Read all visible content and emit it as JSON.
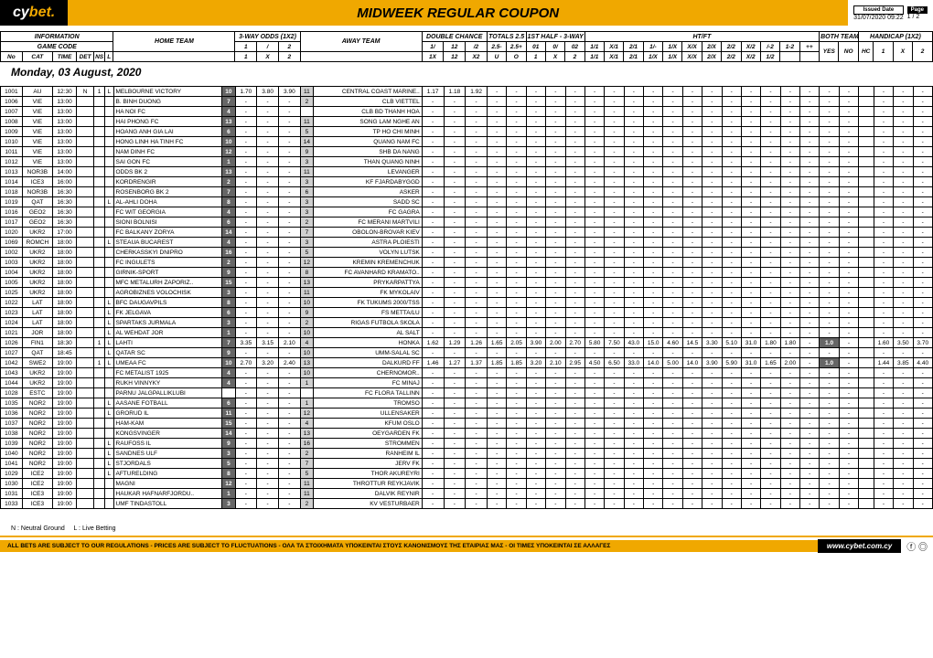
{
  "brand": {
    "pre": "cy",
    "mid": "bet",
    "dot": "."
  },
  "title": "MIDWEEK REGULAR COUPON",
  "issued_label": "Issued Date",
  "issued": "31/07/2020 09:22",
  "page_label": "Page",
  "page": "1 / 2",
  "date_header": "Monday, 03 August, 2020",
  "legend": "N : Neutral Ground     L : Live Betting",
  "disclaimer": "ALL BETS ARE SUBJECT TO OUR REGULATIONS - PRICES ARE SUBJECT TO FLUCTUATIONS - ΟΛΑ ΤΑ ΣΤΟΙΧΗΜΑΤΑ ΥΠΟΚΕΙΝΤΑΙ ΣΤΟΥΣ ΚΑΝΟΝΙΣΜΟΥΣ ΤΗΣ ΕΤΑΙΡΙΑΣ ΜΑΣ - ΟΙ ΤΙΜΕΣ ΥΠΟΚΕΙΝΤΑΙ ΣΕ ΑΛΛΑΓΕΣ",
  "site": "www.cybet.com.cy",
  "groups": {
    "info": "INFORMATION",
    "gamecode": "GAME CODE",
    "home": "HOME TEAM",
    "away": "AWAY TEAM",
    "threeway": "3-WAY ODDS (1X2)",
    "dc": "DOUBLE CHANCE",
    "tot": "TOTALS 2.5",
    "h13": "1ST HALF - 3-WAY",
    "htft": "HT/FT",
    "bts": "BOTH TEAMS TO SCORE",
    "hcap": "HANDICAP (1X2)"
  },
  "sub": {
    "no": "No",
    "cat": "CAT",
    "time": "TIME",
    "det": "DET",
    "ns": "NS",
    "l": "L",
    "o1": "1",
    "ox": "X",
    "o2": "2",
    "dc1": "1X",
    "dc12": "12",
    "dcx2": "X2",
    "u": "U",
    "o": "O",
    "h1": "1",
    "hx": "X",
    "h2": "2",
    "ht": [
      "1/1",
      "X/1",
      "2/1",
      "1/-",
      "1/X",
      "X/X",
      "2/X",
      "2/2",
      "X/2",
      "/-2",
      "1-2",
      "++"
    ],
    "yes": "YES",
    "no2": "NO",
    "hc": "HC",
    "hco": [
      "1",
      "X",
      "2"
    ],
    "tot25m": "2.5-",
    "tot25p": "2.5+",
    "h01": "01",
    "h0x": "0/",
    "h02": "02"
  },
  "rows": [
    {
      "no": "1001",
      "cat": "AU",
      "time": "12:30",
      "det": "N",
      "ns": "1",
      "l": "L",
      "home": "MELBOURNE VICTORY",
      "hp": "10",
      "o1": "1.70",
      "ox": "3.80",
      "o2": "3.90",
      "ap": "11",
      "away": "CENTRAL COAST MARINE..",
      "dc": [
        "1.17",
        "1.18",
        "1.92"
      ],
      "rest": "-"
    },
    {
      "no": "1006",
      "cat": "VIE",
      "time": "13:00",
      "home": "B. BINH DUONG",
      "hp": "7",
      "ap": "2",
      "away": "CLB VIETTEL",
      "rest": "-"
    },
    {
      "no": "1007",
      "cat": "VIE",
      "time": "13:00",
      "home": "HA NOI FC",
      "hp": "4",
      "away": "CLB BD THANH HOA",
      "rest": "-"
    },
    {
      "no": "1008",
      "cat": "VIE",
      "time": "13:00",
      "home": "HAI PHONG FC",
      "hp": "13",
      "ap": "11",
      "away": "SONG LAM NGHE AN",
      "rest": "-"
    },
    {
      "no": "1009",
      "cat": "VIE",
      "time": "13:00",
      "home": "HOANG ANH GIA LAI",
      "hp": "6",
      "ap": "5",
      "away": "TP HO CHI MINH",
      "rest": "-"
    },
    {
      "no": "1010",
      "cat": "VIE",
      "time": "13:00",
      "home": "HONG LINH HA TINH FC",
      "hp": "10",
      "ap": "14",
      "away": "QUANG NAM FC",
      "rest": "-"
    },
    {
      "no": "1011",
      "cat": "VIE",
      "time": "13:00",
      "home": "NAM DINH FC",
      "hp": "12",
      "ap": "9",
      "away": "SHB DA NANG",
      "rest": "-"
    },
    {
      "no": "1012",
      "cat": "VIE",
      "time": "13:00",
      "home": "SAI GON FC",
      "hp": "1",
      "ap": "3",
      "away": "THAN QUANG NINH",
      "rest": "-"
    },
    {
      "no": "1013",
      "cat": "NOR3B",
      "time": "14:00",
      "home": "ODDS BK 2",
      "hp": "13",
      "ap": "11",
      "away": "LEVANGER",
      "rest": "-"
    },
    {
      "no": "1014",
      "cat": "ICE3",
      "time": "16:00",
      "home": "KORDRENGIR",
      "hp": "2",
      "ap": "3",
      "away": "KF FJARDABYGGD",
      "rest": "-"
    },
    {
      "no": "1018",
      "cat": "NOR3B",
      "time": "16:30",
      "home": "ROSENBORG BK 2",
      "hp": "7",
      "ap": "6",
      "away": "ASKER",
      "rest": "-"
    },
    {
      "no": "1019",
      "cat": "QAT",
      "time": "16:30",
      "l": "L",
      "home": "AL-AHLI DOHA",
      "hp": "8",
      "ap": "3",
      "away": "SADD SC",
      "rest": "-"
    },
    {
      "no": "1016",
      "cat": "GEO2",
      "time": "16:30",
      "home": "FC WIT GEORGIA",
      "hp": "4",
      "ap": "3",
      "away": "FC GAGRA",
      "rest": "-"
    },
    {
      "no": "1017",
      "cat": "GEO2",
      "time": "16:30",
      "home": "SIONI BOLNISI",
      "hp": "6",
      "ap": "2",
      "away": "FC MERANI MARTVILI",
      "rest": "-"
    },
    {
      "no": "1020",
      "cat": "UKR2",
      "time": "17:00",
      "home": "FC BALKANY ZORYA",
      "hp": "14",
      "ap": "7",
      "away": "OBOLON-BROVAR KIEV",
      "rest": "-"
    },
    {
      "no": "1069",
      "cat": "ROMCH",
      "time": "18:00",
      "l": "L",
      "home": "STEAUA BUCAREST",
      "hp": "4",
      "ap": "3",
      "away": "ASTRA PLOIESTI",
      "rest": "-"
    },
    {
      "no": "1002",
      "cat": "UKR2",
      "time": "18:00",
      "home": "CHERKASSKYI DNIPRO",
      "hp": "16",
      "ap": "5",
      "away": "VOLYN LUTSK",
      "rest": "-"
    },
    {
      "no": "1003",
      "cat": "UKR2",
      "time": "18:00",
      "home": "FC INGULETS",
      "hp": "2",
      "ap": "12",
      "away": "KREMIN KREMENCHUK",
      "rest": "-"
    },
    {
      "no": "1004",
      "cat": "UKR2",
      "time": "18:00",
      "home": "GIRNIK-SPORT",
      "hp": "9",
      "ap": "8",
      "away": "FC AVANHARD KRAMATO..",
      "rest": "-"
    },
    {
      "no": "1005",
      "cat": "UKR2",
      "time": "18:00",
      "home": "MFC METALURH ZAPORIZ..",
      "hp": "15",
      "ap": "13",
      "away": "PRYKARPATTYA",
      "rest": "-"
    },
    {
      "no": "1025",
      "cat": "UKR2",
      "time": "18:00",
      "home": "AGROBIZNES VOLOCHISK",
      "hp": "3",
      "ap": "11",
      "away": "FK MYKOLAIV",
      "rest": "-"
    },
    {
      "no": "1022",
      "cat": "LAT",
      "time": "18:00",
      "l": "L",
      "home": "BFC DAUGAVPILS",
      "hp": "8",
      "ap": "10",
      "away": "FK TUKUMS 2000/TSS",
      "rest": "-"
    },
    {
      "no": "1023",
      "cat": "LAT",
      "time": "18:00",
      "l": "L",
      "home": "FK JELGAVA",
      "hp": "6",
      "ap": "9",
      "away": "FS METTA/LU",
      "rest": "-"
    },
    {
      "no": "1024",
      "cat": "LAT",
      "time": "18:00",
      "l": "L",
      "home": "SPARTAKS JURMALA",
      "hp": "3",
      "ap": "2",
      "away": "RIGAS FUTBOLA SKOLA",
      "rest": "-"
    },
    {
      "no": "1021",
      "cat": "JOR",
      "time": "18:00",
      "l": "L",
      "home": "AL WEHDAT JOR",
      "hp": "1",
      "ap": "10",
      "away": "AL SALT",
      "rest": "-"
    },
    {
      "no": "1026",
      "cat": "FIN1",
      "time": "18:30",
      "ns": "1",
      "l": "L",
      "home": "LAHTI",
      "hp": "7",
      "o1": "3.35",
      "ox": "3.15",
      "o2": "2.10",
      "ap": "4",
      "away": "HONKA",
      "dc": [
        "1.62",
        "1.29",
        "1.26"
      ],
      "tot": [
        "1.65",
        "2.05"
      ],
      "h3": [
        "3.90",
        "2.00",
        "2.70"
      ],
      "htft": [
        "5.80",
        "7.50",
        "43.0",
        "15.0",
        "4.60",
        "14.5",
        "3.30",
        "5.10",
        "31.0",
        "1.80",
        "1.80"
      ],
      "bts": [
        "1.0"
      ],
      "hco": [
        "1.60",
        "3.50",
        "3.70"
      ]
    },
    {
      "no": "1027",
      "cat": "QAT",
      "time": "18:45",
      "l": "L",
      "home": "QATAR SC",
      "hp": "9",
      "ap": "10",
      "away": "UMM-SALAL SC",
      "rest": "-"
    },
    {
      "no": "1042",
      "cat": "SWE2",
      "time": "19:00",
      "ns": "1",
      "l": "L",
      "home": "UMEAA FC",
      "hp": "10",
      "o1": "2.70",
      "ox": "3.20",
      "o2": "2.40",
      "ap": "13",
      "away": "DALKURD FF",
      "dc": [
        "1.46",
        "1.27",
        "1.37"
      ],
      "tot": [
        "1.85",
        "1.85"
      ],
      "h3": [
        "3.20",
        "2.10",
        "2.95"
      ],
      "htft": [
        "4.50",
        "6.50",
        "33.0",
        "14.0",
        "5.00",
        "14.0",
        "3.90",
        "5.90",
        "31.0",
        "1.65",
        "2.00"
      ],
      "bts": [
        "1.0"
      ],
      "hco": [
        "1.44",
        "3.85",
        "4.40"
      ]
    },
    {
      "no": "1043",
      "cat": "UKR2",
      "time": "19:00",
      "home": "FC METALIST 1925",
      "hp": "4",
      "ap": "10",
      "away": "CHERNOMOR..",
      "rest": "-"
    },
    {
      "no": "1044",
      "cat": "UKR2",
      "time": "19:00",
      "home": "RUKH VINNYKY",
      "hp": "4",
      "ap": "1",
      "away": "FC MINAJ",
      "rest": "-"
    },
    {
      "no": "1028",
      "cat": "ESTC",
      "time": "19:00",
      "home": "PARNU JALGPALLIKLUBI",
      "away": "FC FLORA TALLINN",
      "rest": "-"
    },
    {
      "no": "1035",
      "cat": "NOR2",
      "time": "19:00",
      "l": "L",
      "home": "AASANE FOTBALL",
      "hp": "6",
      "ap": "1",
      "away": "TROMSO",
      "rest": "-"
    },
    {
      "no": "1036",
      "cat": "NOR2",
      "time": "19:00",
      "l": "L",
      "home": "GRORUD IL",
      "hp": "11",
      "ap": "12",
      "away": "ULLENSAKER",
      "rest": "-"
    },
    {
      "no": "1037",
      "cat": "NOR2",
      "time": "19:00",
      "home": "HAM-KAM",
      "hp": "15",
      "ap": "4",
      "away": "KFUM OSLO",
      "rest": "-"
    },
    {
      "no": "1038",
      "cat": "NOR2",
      "time": "19:00",
      "home": "KONGSVINGER",
      "hp": "14",
      "ap": "13",
      "away": "OEYGARDEN FK",
      "rest": "-"
    },
    {
      "no": "1039",
      "cat": "NOR2",
      "time": "19:00",
      "l": "L",
      "home": "RAUFOSS IL",
      "hp": "9",
      "ap": "16",
      "away": "STROMMEN",
      "rest": "-"
    },
    {
      "no": "1040",
      "cat": "NOR2",
      "time": "19:00",
      "l": "L",
      "home": "SANDNES ULF",
      "hp": "3",
      "ap": "2",
      "away": "RANHEIM IL",
      "rest": "-"
    },
    {
      "no": "1041",
      "cat": "NOR2",
      "time": "19:00",
      "l": "L",
      "home": "STJORDALS",
      "hp": "5",
      "ap": "7",
      "away": "JERV FK",
      "rest": "-"
    },
    {
      "no": "1029",
      "cat": "ICE2",
      "time": "19:00",
      "l": "L",
      "home": "AFTURELDING",
      "hp": "8",
      "ap": "5",
      "away": "THOR AKUREYRI",
      "rest": "-"
    },
    {
      "no": "1030",
      "cat": "ICE2",
      "time": "19:00",
      "home": "MAGNI",
      "hp": "12",
      "ap": "11",
      "away": "THROTTUR REYKJAVIK",
      "rest": "-"
    },
    {
      "no": "1031",
      "cat": "ICE3",
      "time": "19:00",
      "home": "HAUKAR HAFNARFJORDU..",
      "hp": "1",
      "ap": "11",
      "away": "DALVIK REYNIR",
      "rest": "-"
    },
    {
      "no": "1033",
      "cat": "ICE3",
      "time": "19:00",
      "home": "UMF TINDASTOLL",
      "hp": "3",
      "ap": "2",
      "away": "KV VESTURBAER",
      "rest": "-"
    }
  ]
}
